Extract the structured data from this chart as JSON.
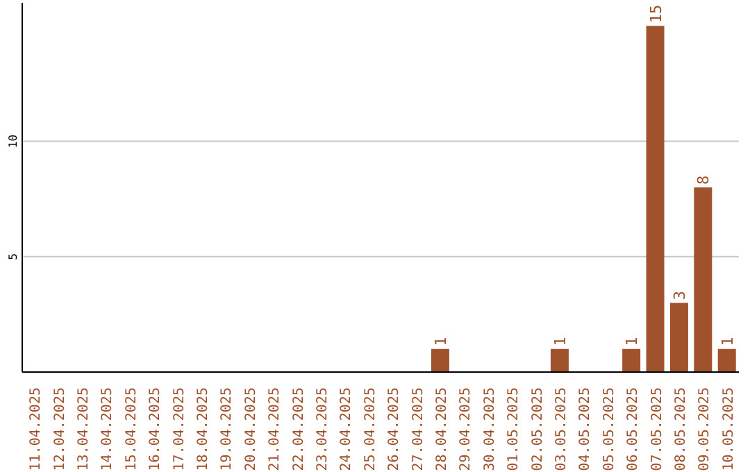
{
  "chart_data": {
    "type": "bar",
    "categories": [
      "11.04.2025",
      "12.04.2025",
      "13.04.2025",
      "14.04.2025",
      "15.04.2025",
      "16.04.2025",
      "17.04.2025",
      "18.04.2025",
      "19.04.2025",
      "20.04.2025",
      "21.04.2025",
      "22.04.2025",
      "23.04.2025",
      "24.04.2025",
      "25.04.2025",
      "26.04.2025",
      "27.04.2025",
      "28.04.2025",
      "29.04.2025",
      "30.04.2025",
      "01.05.2025",
      "02.05.2025",
      "03.05.2025",
      "04.05.2025",
      "05.05.2025",
      "06.05.2025",
      "07.05.2025",
      "08.05.2025",
      "09.05.2025",
      "10.05.2025"
    ],
    "values": [
      0,
      0,
      0,
      0,
      0,
      0,
      0,
      0,
      0,
      0,
      0,
      0,
      0,
      0,
      0,
      0,
      0,
      1,
      0,
      0,
      0,
      0,
      1,
      0,
      0,
      1,
      15,
      3,
      8,
      1
    ],
    "value_labels": [
      null,
      null,
      null,
      null,
      null,
      null,
      null,
      null,
      null,
      null,
      null,
      null,
      null,
      null,
      null,
      null,
      null,
      "1",
      null,
      null,
      null,
      null,
      "1",
      null,
      null,
      "1",
      "15",
      "3",
      "8",
      "1"
    ],
    "color": "#a0522d",
    "ylim": [
      0,
      16
    ],
    "yticks": [
      5,
      10
    ],
    "grid": "y"
  }
}
